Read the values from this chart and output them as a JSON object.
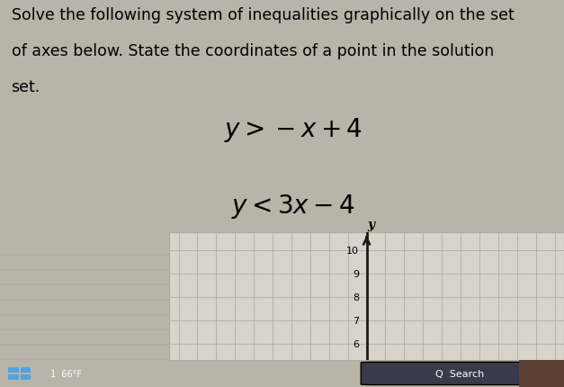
{
  "title_text_line1": "Solve the following system of inequalities graphically on the set",
  "title_text_line2": "of axes below. State the coordinates of a point in the solution",
  "title_text_line3": "set.",
  "ineq1_display": "$y > -x + 4$",
  "ineq2_display": "$y < 3x - 4$",
  "visible_y_ticks": [
    6,
    7,
    8,
    9,
    10
  ],
  "overall_bg": "#b8b4a8",
  "top_bg": "#e8e4dc",
  "left_panel_bg": "#888878",
  "grid_bg": "#d8d4cc",
  "grid_color": "#b0aca0",
  "axis_color": "#1a1a1a",
  "taskbar_bg": "#1e1e2e",
  "title_fontsize": 12.5,
  "ineq_fontsize": 20,
  "tick_fontsize": 8
}
